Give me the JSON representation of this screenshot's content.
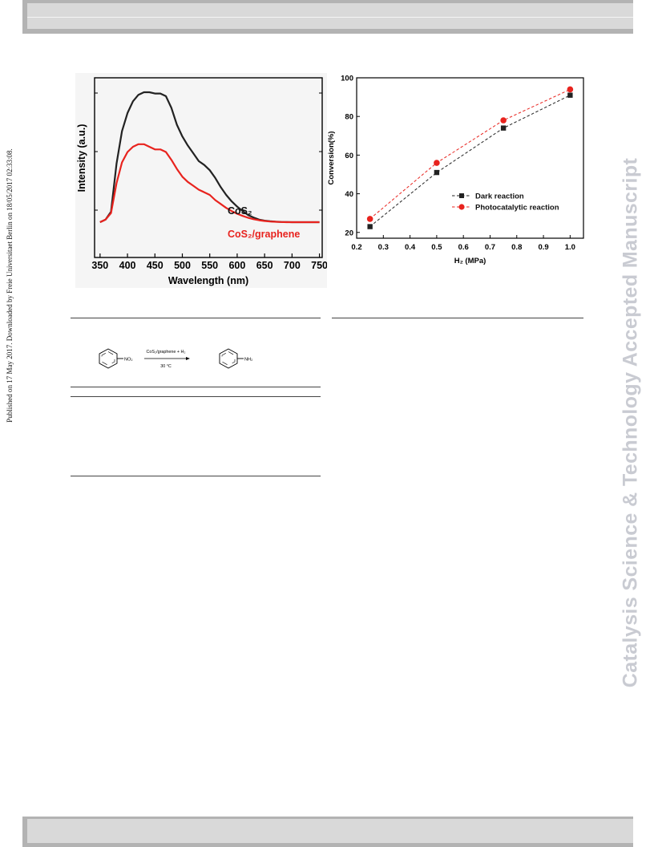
{
  "side_note": "Published on 17 May 2017. Downloaded by Freie Universitaet Berlin on 18/05/2017 02:33:08.",
  "watermark": "Catalysis Science & Technology Accepted Manuscript",
  "scheme": {
    "catalyst_label": "CoS₂/graphene + H₂",
    "temperature": "30 °C",
    "reactant_group": "NO₂",
    "product_group": "NH₂"
  },
  "chart_data": [
    {
      "type": "line",
      "title": "",
      "xlabel": "Wavelength (nm)",
      "ylabel": "Intensity (a.u.)",
      "xlim": [
        340,
        755
      ],
      "ylim": [
        0,
        1.08
      ],
      "xticks": [
        350,
        400,
        450,
        500,
        550,
        600,
        650,
        700,
        750
      ],
      "grid": false,
      "series": [
        {
          "name": "CoS₂",
          "color": "#222222",
          "x": [
            350,
            360,
            370,
            380,
            390,
            400,
            410,
            420,
            430,
            440,
            450,
            460,
            470,
            480,
            490,
            500,
            510,
            520,
            530,
            540,
            550,
            560,
            570,
            580,
            590,
            600,
            610,
            620,
            630,
            640,
            650,
            660,
            670,
            680,
            690,
            700,
            710,
            720,
            730,
            740,
            750
          ],
          "y": [
            0.0,
            0.02,
            0.08,
            0.45,
            0.7,
            0.84,
            0.93,
            0.98,
            1.0,
            1.0,
            0.99,
            0.99,
            0.97,
            0.88,
            0.75,
            0.66,
            0.59,
            0.53,
            0.47,
            0.44,
            0.4,
            0.34,
            0.27,
            0.21,
            0.16,
            0.12,
            0.085,
            0.055,
            0.035,
            0.02,
            0.012,
            0.007,
            0.004,
            0.002,
            0.001,
            0.0,
            0.0,
            0.0,
            0.0,
            0.0,
            0.0
          ]
        },
        {
          "name": "CoS₂/graphene",
          "color": "#e8231e",
          "x": [
            350,
            360,
            370,
            380,
            390,
            400,
            410,
            420,
            430,
            440,
            450,
            460,
            470,
            480,
            490,
            500,
            510,
            520,
            530,
            540,
            550,
            560,
            570,
            580,
            590,
            600,
            610,
            620,
            630,
            640,
            650,
            660,
            670,
            680,
            690,
            700,
            710,
            720,
            730,
            740,
            750
          ],
          "y": [
            0.0,
            0.02,
            0.07,
            0.3,
            0.46,
            0.54,
            0.58,
            0.6,
            0.6,
            0.58,
            0.56,
            0.56,
            0.54,
            0.48,
            0.41,
            0.35,
            0.31,
            0.28,
            0.25,
            0.23,
            0.21,
            0.17,
            0.14,
            0.11,
            0.085,
            0.065,
            0.048,
            0.034,
            0.023,
            0.015,
            0.009,
            0.005,
            0.003,
            0.001,
            0.0,
            0.0,
            0.0,
            0.0,
            0.0,
            0.0,
            0.0
          ]
        }
      ]
    },
    {
      "type": "line",
      "title": "",
      "xlabel": "H₂ (MPa)",
      "ylabel": "Conversion(%)",
      "xlim": [
        0.2,
        1.05
      ],
      "ylim": [
        17,
        100
      ],
      "xticks": [
        0.2,
        0.3,
        0.4,
        0.5,
        0.6,
        0.7,
        0.8,
        0.9,
        1.0
      ],
      "yticks": [
        20,
        40,
        60,
        80,
        100
      ],
      "grid": false,
      "legend": "center-right",
      "series": [
        {
          "name": "Dark reaction",
          "color": "#222222",
          "marker": "square",
          "x": [
            0.25,
            0.5,
            0.75,
            1.0
          ],
          "y": [
            23,
            51,
            74,
            91
          ]
        },
        {
          "name": "Photocatalytic reaction",
          "color": "#e8231e",
          "marker": "circle",
          "x": [
            0.25,
            0.5,
            0.75,
            1.0
          ],
          "y": [
            27,
            56,
            78,
            94
          ]
        }
      ]
    }
  ]
}
